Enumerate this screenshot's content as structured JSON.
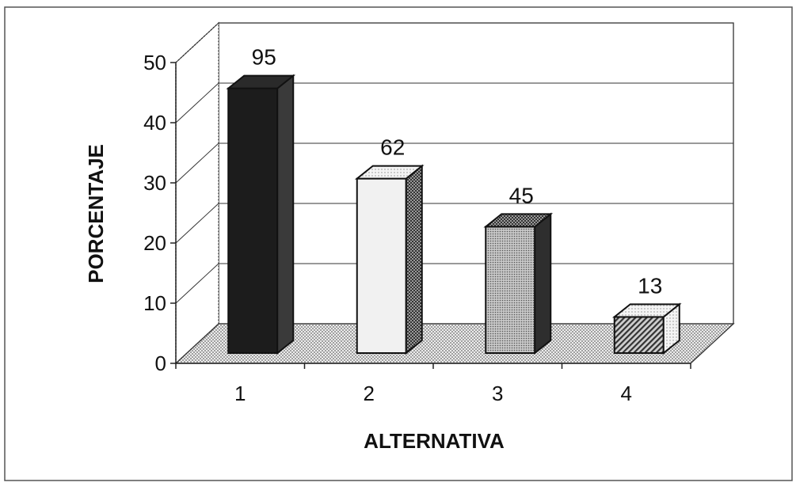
{
  "chart_data": {
    "type": "bar",
    "title": "",
    "xlabel": "ALTERNATIVA",
    "ylabel": "PORCENTAJE",
    "categories": [
      "1",
      "2",
      "3",
      "4"
    ],
    "values": [
      44,
      29,
      21,
      6
    ],
    "data_labels": [
      "95",
      "62",
      "45",
      "13"
    ],
    "ylim": [
      0,
      50
    ],
    "yticks": [
      "0",
      "10",
      "20",
      "30",
      "40",
      "50"
    ],
    "grid": true,
    "legend": "none",
    "bar_colors": [
      "#1c1c1c",
      "#efefef",
      "#bdbdbd",
      "#808080"
    ],
    "floor_color": "#d9d9d9"
  }
}
